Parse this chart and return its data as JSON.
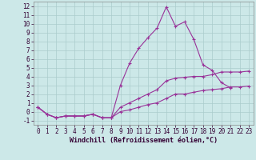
{
  "background_color": "#cce8e8",
  "grid_color": "#aacccc",
  "line_color": "#993399",
  "xlabel": "Windchill (Refroidissement éolien,°C)",
  "xlabel_fontsize": 6,
  "tick_fontsize": 5.5,
  "xlim": [
    -0.5,
    23.5
  ],
  "ylim": [
    -1.5,
    12.5
  ],
  "xticks": [
    0,
    1,
    2,
    3,
    4,
    5,
    6,
    7,
    8,
    9,
    10,
    11,
    12,
    13,
    14,
    15,
    16,
    17,
    18,
    19,
    20,
    21,
    22,
    23
  ],
  "yticks": [
    -1,
    0,
    1,
    2,
    3,
    4,
    5,
    6,
    7,
    8,
    9,
    10,
    11,
    12
  ],
  "line1_x": [
    0,
    1,
    2,
    3,
    4,
    5,
    6,
    7,
    8,
    9,
    10,
    11,
    12,
    13,
    14,
    15,
    16,
    17,
    18,
    19,
    20,
    21
  ],
  "line1_y": [
    0.5,
    -0.3,
    -0.7,
    -0.5,
    -0.5,
    -0.5,
    -0.3,
    -0.7,
    -0.7,
    3.0,
    5.5,
    7.2,
    8.4,
    9.5,
    11.9,
    9.7,
    10.2,
    8.2,
    5.3,
    4.7,
    3.3,
    2.7
  ],
  "line2_x": [
    0,
    1,
    2,
    3,
    4,
    5,
    6,
    7,
    8,
    9,
    10,
    11,
    12,
    13,
    14,
    15,
    16,
    17,
    18,
    19,
    20,
    21,
    22,
    23
  ],
  "line2_y": [
    0.5,
    -0.3,
    -0.7,
    -0.5,
    -0.5,
    -0.5,
    -0.3,
    -0.7,
    -0.7,
    0.5,
    1.0,
    1.5,
    2.0,
    2.5,
    3.5,
    3.8,
    3.9,
    4.0,
    4.0,
    4.2,
    4.5,
    4.5,
    4.5,
    4.6
  ],
  "line3_x": [
    0,
    1,
    2,
    3,
    4,
    5,
    6,
    7,
    8,
    9,
    10,
    11,
    12,
    13,
    14,
    15,
    16,
    17,
    18,
    19,
    20,
    21,
    22,
    23
  ],
  "line3_y": [
    0.5,
    -0.3,
    -0.7,
    -0.5,
    -0.5,
    -0.5,
    -0.3,
    -0.7,
    -0.7,
    0.0,
    0.2,
    0.5,
    0.8,
    1.0,
    1.5,
    2.0,
    2.0,
    2.2,
    2.4,
    2.5,
    2.6,
    2.8,
    2.8,
    2.9
  ]
}
